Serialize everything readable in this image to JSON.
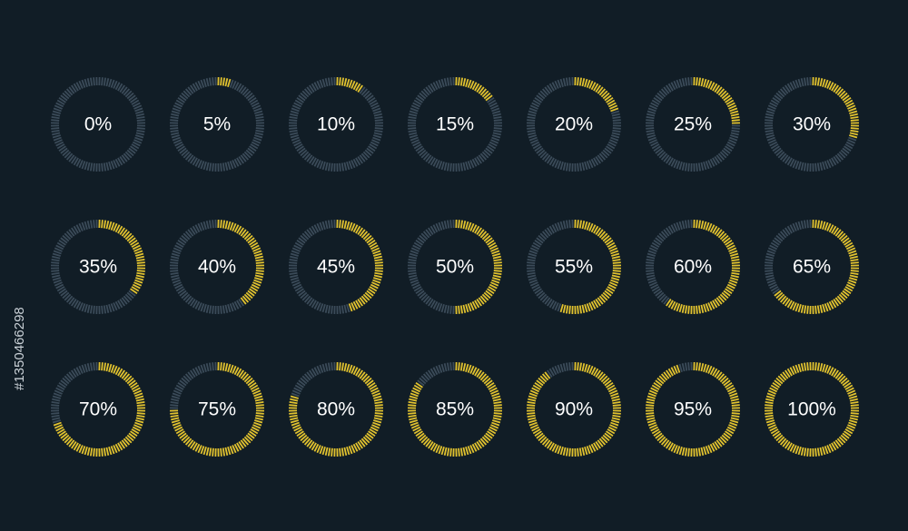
{
  "chart_data": {
    "type": "radial-progress",
    "values": [
      0,
      5,
      10,
      15,
      20,
      25,
      30,
      35,
      40,
      45,
      50,
      55,
      60,
      65,
      70,
      75,
      80,
      85,
      90,
      95,
      100
    ],
    "value_labels": [
      "0%",
      "5%",
      "10%",
      "15%",
      "20%",
      "25%",
      "30%",
      "35%",
      "40%",
      "45%",
      "50%",
      "55%",
      "60%",
      "65%",
      "70%",
      "75%",
      "80%",
      "85%",
      "90%",
      "95%",
      "100%"
    ],
    "vlim": [
      0,
      100
    ],
    "fill_color": "#e1c22f",
    "track_color": "#3b4b59",
    "background": "#111d26"
  },
  "watermark": "#1350466298"
}
